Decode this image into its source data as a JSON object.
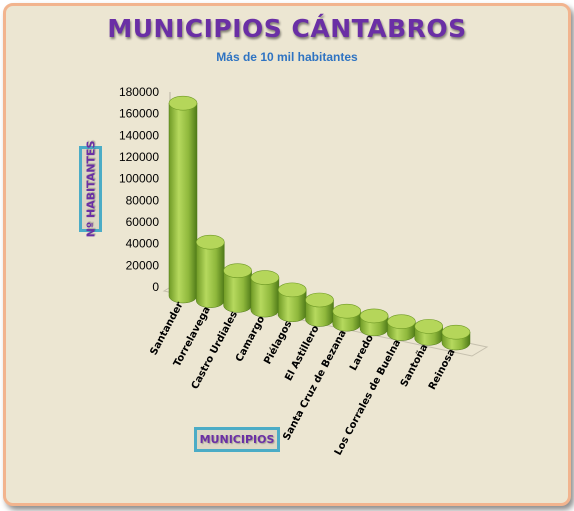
{
  "colors": {
    "bar_top": "#b5d65a",
    "bar_side_dark": "#5f8a1f",
    "bar_side_light": "#a9cf4e",
    "title": "#6a2fa5",
    "subtitle": "#2e73c2",
    "box_border": "#4bacc6"
  },
  "chart_data": {
    "type": "bar",
    "title": "MUNICIPIOS CÁNTABROS",
    "subtitle": "Más de 10 mil habitantes",
    "xlabel": "MUNICIPIOS",
    "ylabel": "Nº HABITANTES",
    "ylim": [
      0,
      180000
    ],
    "yticks": [
      "0",
      "20000",
      "40000",
      "60000",
      "80000",
      "100000",
      "120000",
      "140000",
      "160000",
      "180000"
    ],
    "categories": [
      "Santander",
      "Torrelavega",
      "Castro Urdiales",
      "Camargo",
      "Piélagos",
      "El Astillero",
      "Santa Cruz de Bezana",
      "Laredo",
      "Los Corrales de Buelna",
      "Santoña",
      "Reinosa"
    ],
    "values": [
      178000,
      54000,
      32000,
      30000,
      23000,
      18000,
      12000,
      12000,
      11000,
      11000,
      10000
    ],
    "grid": false,
    "legend": "none"
  }
}
